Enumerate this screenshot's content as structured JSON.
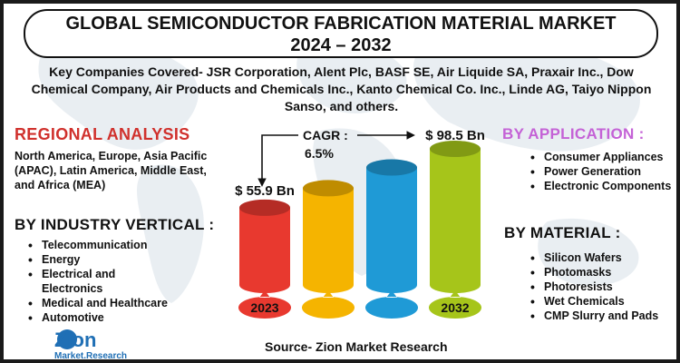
{
  "title_line1": "GLOBAL SEMICONDUCTOR FABRICATION MATERIAL MARKET",
  "title_line2": "2024 – 2032",
  "companies": "Key Companies Covered- JSR Corporation, Alent Plc, BASF SE, Air Liquide SA, Praxair Inc., Dow Chemical Company, Air Products and Chemicals Inc., Kanto Chemical Co. Inc., Linde AG, Taiyo Nippon Sanso, and others.",
  "regional": {
    "heading": "REGIONAL ANALYSIS",
    "text": "North America, Europe, Asia Pacific (APAC), Latin America, Middle East, and Africa (MEA)"
  },
  "industry": {
    "heading": "BY INDUSTRY VERTICAL :",
    "items": [
      "Telecommunication",
      "Energy",
      "Electrical and Electronics",
      "Medical and Healthcare",
      "Automotive"
    ]
  },
  "application": {
    "heading": "BY APPLICATION :",
    "items": [
      "Consumer Appliances",
      "Power Generation",
      "Electronic Components"
    ]
  },
  "material": {
    "heading": "BY  MATERIAL :",
    "items": [
      "Silicon Wafers",
      "Photomasks",
      "Photoresists",
      "Wet Chemicals",
      "CMP Slurry and Pads"
    ]
  },
  "chart_data": {
    "type": "bar",
    "categories": [
      "2023",
      "",
      "",
      "2032"
    ],
    "values": [
      55.9,
      70,
      85,
      98.5
    ],
    "value_labels": [
      "$ 55.9 Bn",
      "",
      "",
      "$ 98.5 Bn"
    ],
    "cagr_label": "CAGR :",
    "cagr_value": "6.5%",
    "colors": [
      "#e8392f",
      "#f5b400",
      "#1f9ad6",
      "#a6c51a"
    ]
  },
  "source": "Source- Zion Market Research",
  "logo": {
    "name": "Zion",
    "sub": "Market.Research"
  }
}
